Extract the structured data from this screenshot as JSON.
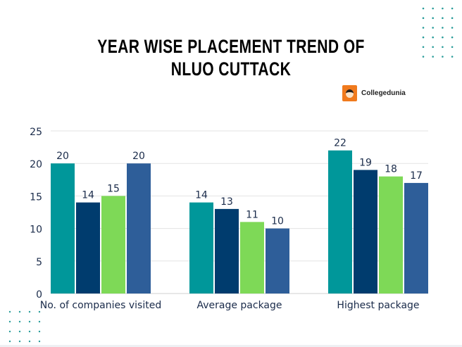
{
  "chart_data": {
    "type": "bar",
    "title": "YEAR WISE PLACEMENT TREND OF NLUO CUTTACK",
    "categories": [
      "No. of companies visited",
      "Average package",
      "Highest package"
    ],
    "series": [
      {
        "values": [
          20,
          14,
          22
        ],
        "color": "#00979a"
      },
      {
        "values": [
          14,
          13,
          19
        ],
        "color": "#003c6e"
      },
      {
        "values": [
          15,
          11,
          18
        ],
        "color": "#7ed957"
      },
      {
        "values": [
          20,
          10,
          17
        ],
        "color": "#2e5e99"
      }
    ],
    "ylim": [
      0,
      25
    ],
    "yticks": [
      0,
      5,
      10,
      15,
      20,
      25
    ],
    "grid": true,
    "data_labels": true,
    "xlabel": "",
    "ylabel": ""
  },
  "branding": {
    "logo_text": "Collegedunia"
  },
  "colors": {
    "dots": "#2a9d9a",
    "text": "#1a2b4a"
  }
}
